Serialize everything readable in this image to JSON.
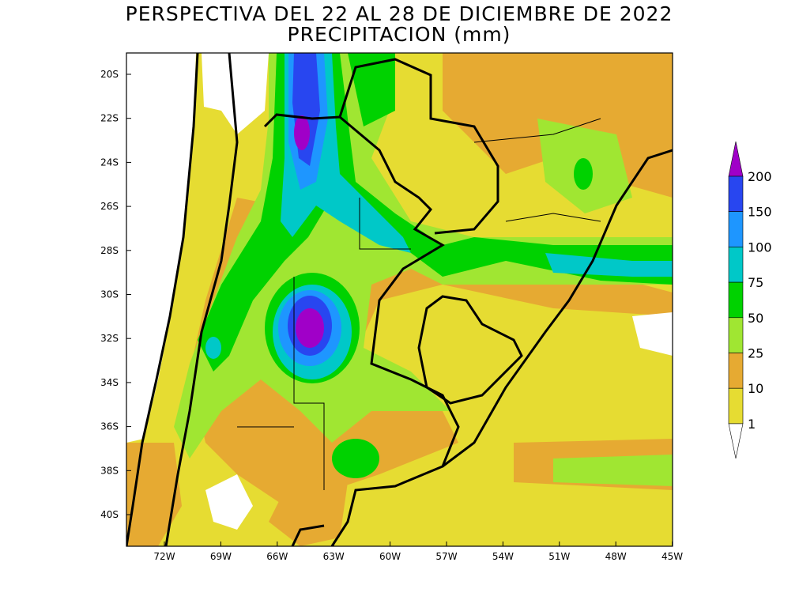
{
  "title": "PERSPECTIVA DEL 22 AL 28 DE DICIEMBRE DE 2022",
  "subtitle": "PRECIPITACION (mm)",
  "map": {
    "lat_ticks": [
      "20S",
      "22S",
      "24S",
      "26S",
      "28S",
      "30S",
      "32S",
      "34S",
      "36S",
      "38S",
      "40S"
    ],
    "lon_ticks": [
      "72W",
      "69W",
      "66W",
      "63W",
      "60W",
      "57W",
      "54W",
      "51W",
      "48W",
      "45W"
    ]
  },
  "legend": {
    "levels": [
      200,
      150,
      100,
      75,
      50,
      25,
      10,
      1
    ],
    "colors": [
      "#a000c8",
      "#2846f0",
      "#1e96ff",
      "#00c8c8",
      "#00d200",
      "#a0e632",
      "#e6aa32",
      "#e6dc32",
      "#ffffff"
    ]
  }
}
